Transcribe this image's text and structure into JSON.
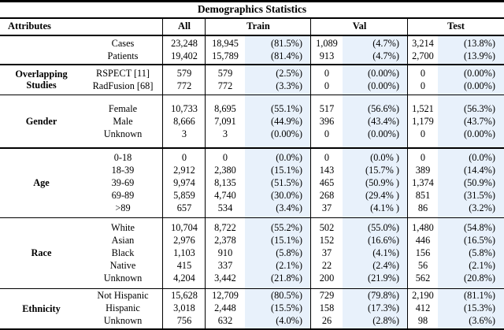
{
  "title": "Demographics Statistics",
  "colors": {
    "highlight": "#e8f1fb",
    "rule": "#000000"
  },
  "header": {
    "attributes": "Attributes",
    "all": "All",
    "train": "Train",
    "val": "Val",
    "test": "Test"
  },
  "sections": [
    {
      "group": "",
      "rows": [
        {
          "label": "Cases",
          "all": "23,248",
          "train": "18,945",
          "train_pct": "(81.5%)",
          "val": "1,089",
          "val_pct": "(4.7%)",
          "test": "3,214",
          "test_pct": "(13.8%)"
        },
        {
          "label": "Patients",
          "all": "19,402",
          "train": "15,789",
          "train_pct": "(81.4%)",
          "val": "913",
          "val_pct": "(4.7%)",
          "test": "2,700",
          "test_pct": "(13.9%)"
        }
      ]
    },
    {
      "group": "Overlapping Studies",
      "rows": [
        {
          "label": "RSPECT [11]",
          "all": "579",
          "train": "579",
          "train_pct": "(2.5%)",
          "val": "0",
          "val_pct": "(0.00%)",
          "test": "0",
          "test_pct": "(0.00%)"
        },
        {
          "label": "RadFusion [68]",
          "all": "772",
          "train": "772",
          "train_pct": "(3.3%)",
          "val": "0",
          "val_pct": "(0.00%)",
          "test": "0",
          "test_pct": "(0.00%)"
        }
      ]
    },
    {
      "group": "Gender",
      "rows": [
        {
          "label": "Female",
          "all": "10,733",
          "train": "8,695",
          "train_pct": "(55.1%)",
          "val": "517",
          "val_pct": "(56.6%)",
          "test": "1,521",
          "test_pct": "(56.3%)"
        },
        {
          "label": "Male",
          "all": "8,666",
          "train": "7,091",
          "train_pct": "(44.9%)",
          "val": "396",
          "val_pct": "(43.4%)",
          "test": "1,179",
          "test_pct": "(43.7%)"
        },
        {
          "label": "Unknown",
          "all": "3",
          "train": "3",
          "train_pct": "(0.00%)",
          "val": "0",
          "val_pct": "(0.00%)",
          "test": "0",
          "test_pct": "(0.00%)"
        }
      ]
    },
    {
      "group": "Age",
      "rows": [
        {
          "label": "0-18",
          "all": "0",
          "train": "0",
          "train_pct": "(0.0%)",
          "val": "0",
          "val_pct": "(0.0% )",
          "test": "0",
          "test_pct": "(0.0%)"
        },
        {
          "label": "18-39",
          "all": "2,912",
          "train": "2,380",
          "train_pct": "(15.1%)",
          "val": "143",
          "val_pct": "(15.7% )",
          "test": "389",
          "test_pct": "(14.4%)"
        },
        {
          "label": "39-69",
          "all": "9,974",
          "train": "8,135",
          "train_pct": "(51.5%)",
          "val": "465",
          "val_pct": "(50.9% )",
          "test": "1,374",
          "test_pct": "(50.9%)"
        },
        {
          "label": "69-89",
          "all": "5,859",
          "train": "4,740",
          "train_pct": "(30.0%)",
          "val": "268",
          "val_pct": "(29.4% )",
          "test": "851",
          "test_pct": "(31.5%)"
        },
        {
          "label": ">89",
          "all": "657",
          "train": "534",
          "train_pct": "(3.4%)",
          "val": "37",
          "val_pct": "(4.1% )",
          "test": "86",
          "test_pct": "(3.2%)"
        }
      ]
    },
    {
      "group": "Race",
      "rows": [
        {
          "label": "White",
          "all": "10,704",
          "train": "8,722",
          "train_pct": "(55.2%)",
          "val": "502",
          "val_pct": "(55.0%)",
          "test": "1,480",
          "test_pct": "(54.8%)"
        },
        {
          "label": "Asian",
          "all": "2,976",
          "train": "2,378",
          "train_pct": "(15.1%)",
          "val": "152",
          "val_pct": "(16.6%)",
          "test": "446",
          "test_pct": "(16.5%)"
        },
        {
          "label": "Black",
          "all": "1,103",
          "train": "910",
          "train_pct": "(5.8%)",
          "val": "37",
          "val_pct": "(4.1%)",
          "test": "156",
          "test_pct": "(5.8%)"
        },
        {
          "label": "Native",
          "all": "415",
          "train": "337",
          "train_pct": "(2.1%)",
          "val": "22",
          "val_pct": "(2.4%)",
          "test": "56",
          "test_pct": "(2.1%)"
        },
        {
          "label": "Unknown",
          "all": "4,204",
          "train": "3,442",
          "train_pct": "(21.8%)",
          "val": "200",
          "val_pct": "(21.9%)",
          "test": "562",
          "test_pct": "(20.8%)"
        }
      ]
    },
    {
      "group": "Ethnicity",
      "rows": [
        {
          "label": "Not Hispanic",
          "all": "15,628",
          "train": "12,709",
          "train_pct": "(80.5%)",
          "val": "729",
          "val_pct": "(79.8%)",
          "test": "2,190",
          "test_pct": "(81.1%)"
        },
        {
          "label": "Hispanic",
          "all": "3,018",
          "train": "2,448",
          "train_pct": "(15.5%)",
          "val": "158",
          "val_pct": "(17.3%)",
          "test": "412",
          "test_pct": "(15.3%)"
        },
        {
          "label": "Unknown",
          "all": "756",
          "train": "632",
          "train_pct": "(4.0%)",
          "val": "26",
          "val_pct": "(2.8%)",
          "test": "98",
          "test_pct": "(3.6%)"
        }
      ]
    }
  ]
}
